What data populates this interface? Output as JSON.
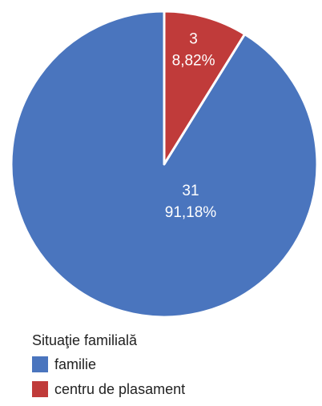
{
  "chart_data": {
    "type": "pie",
    "legend_title": "Situaţie familială",
    "legend_position": "bottom-left",
    "slices": [
      {
        "name": "familie",
        "count": "31",
        "percent_label": "91,18%",
        "value": 31,
        "percent": 91.18,
        "color": "#4a75be"
      },
      {
        "name": "centru de plasament",
        "count": "3",
        "percent_label": "8,82%",
        "value": 3,
        "percent": 8.82,
        "color": "#c03b3a"
      }
    ]
  }
}
